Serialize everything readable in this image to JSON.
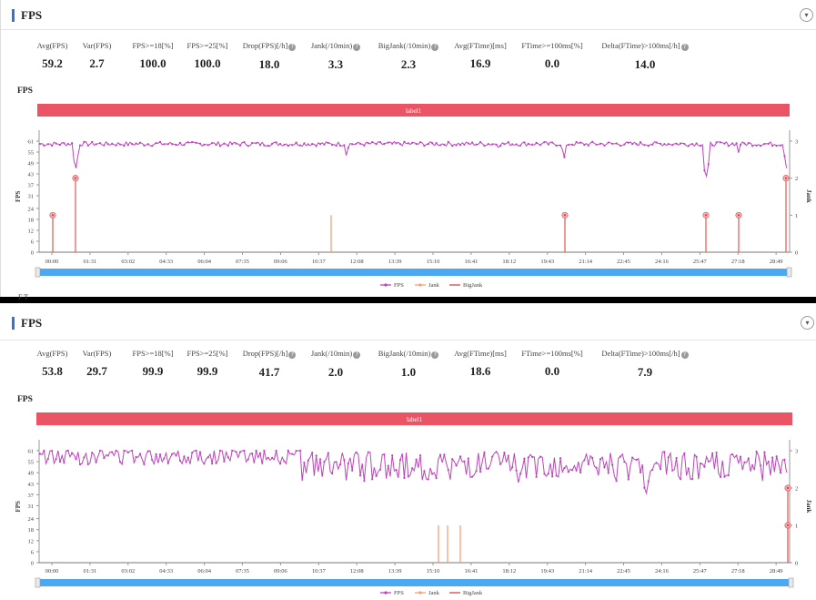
{
  "colors": {
    "fps": "#bb44bb",
    "jank": "#f0a27a",
    "bigjank": "#d9434b",
    "label_band": "#ea5464",
    "scroll": "#4aa9f2"
  },
  "panels": [
    {
      "title": "FPS",
      "stats": [
        {
          "label": "Avg(FPS)",
          "value": "59.2",
          "help": false
        },
        {
          "label": "Var(FPS)",
          "value": "2.7",
          "help": false
        },
        {
          "label": "FPS>=18[%]",
          "value": "100.0",
          "help": false
        },
        {
          "label": "FPS>=25[%]",
          "value": "100.0",
          "help": false
        },
        {
          "label": "Drop(FPS)[/h]",
          "value": "18.0",
          "help": true
        },
        {
          "label": "Jank(/10min)",
          "value": "3.3",
          "help": true
        },
        {
          "label": "BigJank(/10min)",
          "value": "2.3",
          "help": true
        },
        {
          "label": "Avg(FTime)[ms]",
          "value": "16.9",
          "help": false
        },
        {
          "label": "FTime>=100ms[%]",
          "value": "0.0",
          "help": false
        },
        {
          "label": "Delta(FTime)>100ms[/h]",
          "value": "14.0",
          "help": true
        }
      ],
      "chart_title": "FPS",
      "chart_data": {
        "type": "line",
        "band_label": "label1",
        "x_ticks": [
          "00:00",
          "01:31",
          "03:02",
          "04:33",
          "06:04",
          "07:35",
          "09:06",
          "10:37",
          "12:08",
          "13:39",
          "15:10",
          "16:41",
          "18:12",
          "19:43",
          "21:14",
          "22:45",
          "24:16",
          "25:47",
          "27:18",
          "28:49"
        ],
        "y_ticks": [
          0,
          6,
          12,
          18,
          24,
          31,
          37,
          43,
          49,
          55,
          61
        ],
        "y2_ticks": [
          0,
          1,
          2,
          3
        ],
        "ylabel": "FPS",
        "y2label": "Jank",
        "ylim": [
          0,
          61
        ],
        "y2lim": [
          0,
          3
        ],
        "fps_profile": {
          "base": 59.5,
          "noise": 1.2,
          "seed": 7,
          "dips": [
            [
              83,
              45
            ],
            [
              381,
              52
            ],
            [
              620,
              51
            ],
            [
              776,
              40
            ],
            [
              812,
              54
            ],
            [
              865,
              45
            ],
            [
              548,
              57
            ],
            [
              210,
              57
            ]
          ]
        },
        "jank_events": [
          {
            "t_px": 58,
            "value": 1
          },
          {
            "t_px": 83,
            "value": 2
          },
          {
            "t_px": 364,
            "value": 1
          },
          {
            "t_px": 621,
            "value": 1
          },
          {
            "t_px": 776,
            "value": 1
          },
          {
            "t_px": 812,
            "value": 1
          },
          {
            "t_px": 864,
            "value": 2
          }
        ],
        "bigjank_events": [
          {
            "t_px": 58,
            "value": 1
          },
          {
            "t_px": 83,
            "value": 2
          },
          {
            "t_px": 621,
            "value": 1
          },
          {
            "t_px": 776,
            "value": 1
          },
          {
            "t_px": 812,
            "value": 1
          },
          {
            "t_px": 864,
            "value": 2
          }
        ],
        "legend": [
          "FPS",
          "Jank",
          "BigJank"
        ]
      }
    },
    {
      "title": "FPS",
      "stats": [
        {
          "label": "Avg(FPS)",
          "value": "53.8",
          "help": false
        },
        {
          "label": "Var(FPS)",
          "value": "29.7",
          "help": false
        },
        {
          "label": "FPS>=18[%]",
          "value": "99.9",
          "help": false
        },
        {
          "label": "FPS>=25[%]",
          "value": "99.9",
          "help": false
        },
        {
          "label": "Drop(FPS)[/h]",
          "value": "41.7",
          "help": true
        },
        {
          "label": "Jank(/10min)",
          "value": "2.0",
          "help": true
        },
        {
          "label": "BigJank(/10min)",
          "value": "1.0",
          "help": true
        },
        {
          "label": "Avg(FTime)[ms]",
          "value": "18.6",
          "help": false
        },
        {
          "label": "FTime>=100ms[%]",
          "value": "0.0",
          "help": false
        },
        {
          "label": "Delta(FTime)>100ms[/h]",
          "value": "7.9",
          "help": true
        }
      ],
      "chart_title": "FPS",
      "chart_data": {
        "type": "line",
        "band_label": "label1",
        "x_ticks": [
          "00:00",
          "01:31",
          "03:02",
          "04:33",
          "06:04",
          "07:35",
          "09:06",
          "10:37",
          "12:08",
          "13:39",
          "15:10",
          "16:41",
          "18:12",
          "19:43",
          "21:14",
          "22:45",
          "24:16",
          "25:47",
          "27:18",
          "28:49"
        ],
        "y_ticks": [
          0,
          6,
          12,
          18,
          24,
          31,
          37,
          43,
          49,
          55,
          61
        ],
        "y2_ticks": [
          0,
          1,
          2,
          3
        ],
        "ylabel": "FPS",
        "y2label": "Jank",
        "ylim": [
          0,
          61
        ],
        "y2lim": [
          0,
          3
        ],
        "fps_profile": {
          "base": 58.5,
          "noise": 5,
          "seed": 13,
          "dips": [
            [
              365,
              48
            ],
            [
              470,
              43
            ],
            [
              570,
              43
            ],
            [
              710,
              36
            ],
            [
              866,
              45
            ]
          ]
        },
        "jank_events": [
          {
            "t_px": 482,
            "value": 1
          },
          {
            "t_px": 492,
            "value": 1
          },
          {
            "t_px": 506,
            "value": 1
          },
          {
            "t_px": 866,
            "value": 2
          }
        ],
        "bigjank_events": [
          {
            "t_px": 866,
            "value": 2
          },
          {
            "t_px": 866,
            "value": 1
          }
        ],
        "legend": [
          "FPS",
          "Jank",
          "BigJank"
        ]
      }
    }
  ],
  "cutoff_text": "F      T"
}
